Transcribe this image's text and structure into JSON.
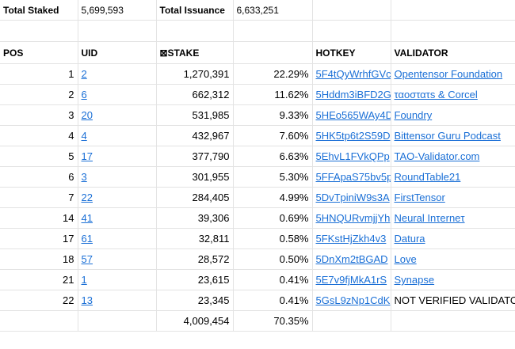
{
  "summary": {
    "total_staked_label": "Total Staked",
    "total_staked_value": "5,699,593",
    "total_issuance_label": "Total Issuance",
    "total_issuance_value": "6,633,251"
  },
  "headers": {
    "pos": "POS",
    "uid": "UID",
    "stake": "⊠STAKE",
    "pct": "",
    "hotkey": "HOTKEY",
    "validator": "VALIDATOR"
  },
  "rows": [
    {
      "pos": "1",
      "uid": "2",
      "stake": "1,270,391",
      "pct": "22.29%",
      "hotkey": "5F4tQyWrhfGVc",
      "validator": "Opentensor Foundation",
      "validator_linked": true
    },
    {
      "pos": "2",
      "uid": "6",
      "stake": "662,312",
      "pct": "11.62%",
      "hotkey": "5Hddm3iBFD2G",
      "validator": "ταοστατs & Corcel",
      "validator_linked": true
    },
    {
      "pos": "3",
      "uid": "20",
      "stake": "531,985",
      "pct": "9.33%",
      "hotkey": "5HEo565WAy4D",
      "validator": "Foundry",
      "validator_linked": true
    },
    {
      "pos": "4",
      "uid": "4",
      "stake": "432,967",
      "pct": "7.60%",
      "hotkey": "5HK5tp6t2S59D",
      "validator": "Bittensor Guru Podcast",
      "validator_linked": true
    },
    {
      "pos": "5",
      "uid": "17",
      "stake": "377,790",
      "pct": "6.63%",
      "hotkey": "5EhvL1FVkQPp",
      "validator": "TAO-Validator.com",
      "validator_linked": true
    },
    {
      "pos": "6",
      "uid": "3",
      "stake": "301,955",
      "pct": "5.30%",
      "hotkey": "5FFApaS75bv5p",
      "validator": "RoundTable21",
      "validator_linked": true
    },
    {
      "pos": "7",
      "uid": "22",
      "stake": "284,405",
      "pct": "4.99%",
      "hotkey": "5DvTpiniW9s3A",
      "validator": "FirstTensor",
      "validator_linked": true
    },
    {
      "pos": "14",
      "uid": "41",
      "stake": "39,306",
      "pct": "0.69%",
      "hotkey": "5HNQURvmjjYh",
      "validator": "Neural Inτerneτ",
      "validator_linked": true
    },
    {
      "pos": "17",
      "uid": "61",
      "stake": "32,811",
      "pct": "0.58%",
      "hotkey": "5FKstHjZkh4v3",
      "validator": "Datura",
      "validator_linked": true
    },
    {
      "pos": "18",
      "uid": "57",
      "stake": "28,572",
      "pct": "0.50%",
      "hotkey": "5DnXm2tBGAD",
      "validator": "Love",
      "validator_linked": true
    },
    {
      "pos": "21",
      "uid": "1",
      "stake": "23,615",
      "pct": "0.41%",
      "hotkey": "5E7v9fjMkA1rS",
      "validator": "Synapse",
      "validator_linked": true
    },
    {
      "pos": "22",
      "uid": "13",
      "stake": "23,345",
      "pct": "0.41%",
      "hotkey": "5GsL9zNp1CdK",
      "validator": "NOT VERIFIED VALIDATOR",
      "validator_linked": false
    }
  ],
  "totals": {
    "stake": "4,009,454",
    "pct": "70.35%"
  },
  "colors": {
    "link": "#1a6fd6",
    "grid": "#e3e3e3"
  }
}
